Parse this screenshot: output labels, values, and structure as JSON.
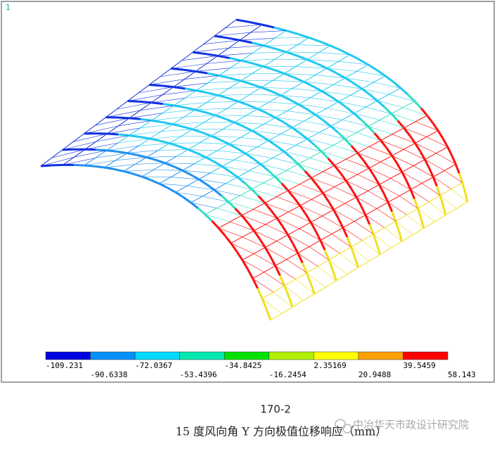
{
  "figure": {
    "corner_label": "1",
    "legend": {
      "colors": [
        "#0000e0",
        "#0090ff",
        "#00d8ff",
        "#00e8b0",
        "#00e000",
        "#b0f000",
        "#ffff00",
        "#ffa000",
        "#ff0000"
      ],
      "labels": [
        "-109.231",
        "-90.6338",
        "-72.0367",
        "-53.4396",
        "-34.8425",
        "-16.2454",
        "2.35169",
        "20.9488",
        "39.5459",
        "58.143"
      ]
    },
    "caption_number": "170-2",
    "caption": "15 度风向角 Y 方向极值位移响应（mm）",
    "watermark": "中冶华天市政设计研究院"
  }
}
